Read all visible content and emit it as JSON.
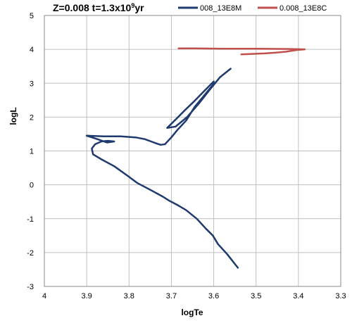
{
  "chart_data": {
    "type": "line",
    "title_prefix": "Z=0.008  t=1.3x10",
    "title_exponent": "9",
    "title_suffix": "yr",
    "xlabel": "logTe",
    "ylabel": "logL",
    "xlim": [
      4,
      3.3
    ],
    "ylim": [
      -3,
      5
    ],
    "x_reversed": true,
    "x_ticks": [
      4,
      3.9,
      3.8,
      3.7,
      3.6,
      3.5,
      3.4,
      3.3
    ],
    "x_tick_labels": [
      "4",
      "3.9",
      "3.8",
      "3.7",
      "3.6",
      "3.5",
      "3.4",
      "3.3"
    ],
    "y_ticks": [
      -3,
      -2,
      -1,
      0,
      1,
      2,
      3,
      4,
      5
    ],
    "y_tick_labels": [
      "-3",
      "-2",
      "-1",
      "0",
      "1",
      "2",
      "3",
      "4",
      "5"
    ],
    "grid": true,
    "legend_position": "top-right",
    "series": [
      {
        "name": "008_13E8M",
        "color": "#1f3a6e",
        "x": [
          3.543,
          3.568,
          3.59,
          3.602,
          3.618,
          3.64,
          3.665,
          3.685,
          3.705,
          3.72,
          3.745,
          3.78,
          3.805,
          3.835,
          3.865,
          3.885,
          3.888,
          3.88,
          3.865,
          3.85,
          3.835,
          3.852,
          3.875,
          3.9,
          3.86,
          3.82,
          3.785,
          3.763,
          3.748,
          3.735,
          3.725,
          3.715,
          3.7,
          3.685,
          3.665,
          3.645,
          3.625,
          3.6,
          3.6,
          3.62,
          3.645,
          3.67,
          3.688,
          3.71,
          3.69,
          3.663,
          3.635,
          3.61,
          3.585,
          3.56
        ],
        "y": [
          -2.45,
          -2.05,
          -1.75,
          -1.5,
          -1.3,
          -1.0,
          -0.75,
          -0.6,
          -0.47,
          -0.35,
          -0.18,
          0.05,
          0.28,
          0.55,
          0.75,
          0.9,
          1.07,
          1.2,
          1.28,
          1.3,
          1.28,
          1.25,
          1.35,
          1.45,
          1.43,
          1.43,
          1.4,
          1.35,
          1.28,
          1.22,
          1.18,
          1.2,
          1.4,
          1.63,
          1.9,
          2.3,
          2.6,
          2.98,
          3.05,
          2.8,
          2.48,
          2.18,
          1.95,
          1.68,
          1.72,
          2.0,
          2.4,
          2.8,
          3.18,
          3.43
        ]
      },
      {
        "name": "0.008_13E8C",
        "color": "#c0504d",
        "x": [
          3.535,
          3.48,
          3.455,
          3.43,
          3.405,
          3.385,
          3.42,
          3.5,
          3.58,
          3.64,
          3.683
        ],
        "y": [
          3.85,
          3.88,
          3.9,
          3.93,
          3.98,
          4.0,
          4.01,
          4.02,
          4.02,
          4.03,
          4.03
        ]
      }
    ]
  }
}
